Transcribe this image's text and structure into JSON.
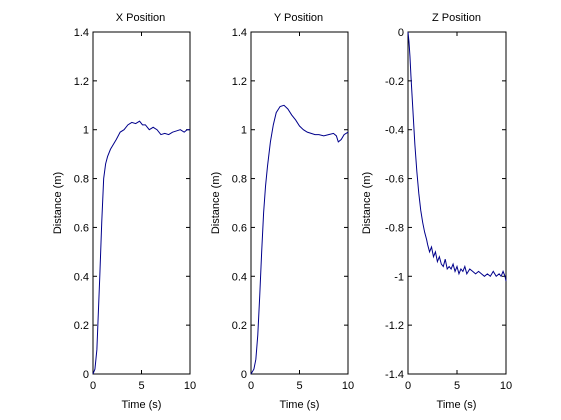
{
  "colors": {
    "background": "#ffffff",
    "axes": "#000000",
    "line": "#00008b"
  },
  "chart_data": [
    {
      "type": "line",
      "title": "X Position",
      "xlabel": "Time (s)",
      "ylabel": "Distance (m)",
      "xlim": [
        0,
        10
      ],
      "ylim": [
        0,
        1.4
      ],
      "xticks": [
        "0",
        "5",
        "10"
      ],
      "yticks": [
        "0",
        "0.2",
        "0.4",
        "0.6",
        "0.8",
        "1",
        "1.2",
        "1.4"
      ],
      "grid": false,
      "series": [
        {
          "x": [
            0,
            0.2,
            0.4,
            0.5,
            0.7,
            0.9,
            1.1,
            1.3,
            1.5,
            1.8,
            2.1,
            2.4,
            2.8,
            3.2,
            3.6,
            4.0,
            4.4,
            4.8,
            5.1,
            5.4,
            5.8,
            6.2,
            6.6,
            7.0,
            7.4,
            7.8,
            8.2,
            8.6,
            9.0,
            9.4,
            9.7,
            10.0
          ],
          "y": [
            0,
            0.02,
            0.1,
            0.2,
            0.4,
            0.62,
            0.8,
            0.86,
            0.89,
            0.92,
            0.94,
            0.96,
            0.99,
            1.0,
            1.02,
            1.03,
            1.025,
            1.035,
            1.02,
            1.02,
            1.0,
            1.01,
            1.0,
            0.98,
            0.985,
            0.98,
            0.99,
            0.995,
            1.0,
            0.99,
            1.0,
            1.0
          ]
        }
      ]
    },
    {
      "type": "line",
      "title": "Y Position",
      "xlabel": "Time (s)",
      "ylabel": "Distance (m)",
      "xlim": [
        0,
        10
      ],
      "ylim": [
        0,
        1.4
      ],
      "xticks": [
        "0",
        "5",
        "10"
      ],
      "yticks": [
        "0",
        "0.2",
        "0.4",
        "0.6",
        "0.8",
        "1",
        "1.2",
        "1.4"
      ],
      "grid": false,
      "series": [
        {
          "x": [
            0,
            0.3,
            0.5,
            0.7,
            0.9,
            1.1,
            1.3,
            1.5,
            1.7,
            2.0,
            2.3,
            2.6,
            3.0,
            3.4,
            3.8,
            4.2,
            4.6,
            5.0,
            5.4,
            5.8,
            6.2,
            6.6,
            7.0,
            7.5,
            8.0,
            8.5,
            8.8,
            9.0,
            9.3,
            9.6,
            10.0
          ],
          "y": [
            0,
            0.02,
            0.06,
            0.16,
            0.32,
            0.5,
            0.66,
            0.77,
            0.85,
            0.95,
            1.02,
            1.07,
            1.095,
            1.1,
            1.085,
            1.06,
            1.04,
            1.015,
            1.0,
            0.99,
            0.985,
            0.98,
            0.98,
            0.975,
            0.98,
            0.985,
            0.975,
            0.95,
            0.96,
            0.98,
            0.99
          ]
        }
      ]
    },
    {
      "type": "line",
      "title": "Z Position",
      "xlabel": "Time (s)",
      "ylabel": "Distance (m)",
      "xlim": [
        0,
        10
      ],
      "ylim": [
        -1.4,
        0
      ],
      "xticks": [
        "0",
        "5",
        "10"
      ],
      "yticks": [
        "-1.4",
        "-1.2",
        "-1",
        "-0.8",
        "-0.6",
        "-0.4",
        "-0.2",
        "0"
      ],
      "grid": false,
      "series": [
        {
          "x": [
            0,
            0.1,
            0.2,
            0.3,
            0.5,
            0.7,
            0.9,
            1.1,
            1.3,
            1.5,
            1.7,
            1.9,
            2.0,
            2.2,
            2.4,
            2.6,
            2.8,
            3.0,
            3.2,
            3.4,
            3.6,
            3.8,
            4.0,
            4.2,
            4.4,
            4.6,
            4.8,
            5.0,
            5.2,
            5.4,
            5.6,
            5.8,
            6.0,
            6.3,
            6.6,
            6.9,
            7.2,
            7.5,
            7.8,
            8.1,
            8.4,
            8.7,
            9.0,
            9.3,
            9.5,
            9.7,
            9.9,
            10.0
          ],
          "y": [
            0,
            -0.04,
            -0.1,
            -0.18,
            -0.32,
            -0.46,
            -0.57,
            -0.66,
            -0.73,
            -0.78,
            -0.82,
            -0.85,
            -0.87,
            -0.9,
            -0.88,
            -0.92,
            -0.9,
            -0.94,
            -0.92,
            -0.95,
            -0.96,
            -0.93,
            -0.97,
            -0.96,
            -0.97,
            -0.95,
            -0.98,
            -0.96,
            -0.99,
            -0.97,
            -0.98,
            -0.96,
            -0.99,
            -0.97,
            -0.98,
            -0.99,
            -0.98,
            -0.99,
            -1.0,
            -0.99,
            -1.0,
            -0.98,
            -1.0,
            -0.99,
            -1.0,
            -0.98,
            -1.0,
            -1.02
          ]
        }
      ]
    }
  ]
}
